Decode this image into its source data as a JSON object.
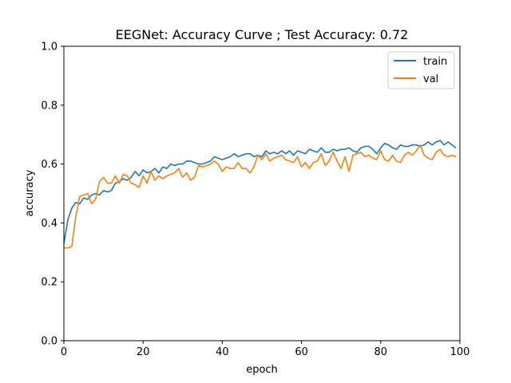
{
  "chart_data": {
    "type": "line",
    "title": "EEGNet: Accuracy Curve ; Test Accuracy: 0.72",
    "xlabel": "epoch",
    "ylabel": "accuracy",
    "xlim": [
      0,
      100
    ],
    "ylim": [
      0.0,
      1.0
    ],
    "xticks": [
      0,
      20,
      40,
      60,
      80,
      100
    ],
    "yticks": [
      0.0,
      0.2,
      0.4,
      0.6,
      0.8,
      1.0
    ],
    "xtick_labels": [
      "0",
      "20",
      "40",
      "60",
      "80",
      "100"
    ],
    "ytick_labels": [
      "0.0",
      "0.2",
      "0.4",
      "0.6",
      "0.8",
      "1.0"
    ],
    "grid": false,
    "legend_position": "top-right",
    "series": [
      {
        "name": "train",
        "color": "#1f77b4",
        "x": [
          0,
          1,
          2,
          3,
          4,
          5,
          6,
          7,
          8,
          9,
          10,
          11,
          12,
          13,
          14,
          15,
          16,
          17,
          18,
          19,
          20,
          21,
          22,
          23,
          24,
          25,
          26,
          27,
          28,
          29,
          30,
          31,
          32,
          33,
          34,
          35,
          36,
          37,
          38,
          39,
          40,
          41,
          42,
          43,
          44,
          45,
          46,
          47,
          48,
          49,
          50,
          51,
          52,
          53,
          54,
          55,
          56,
          57,
          58,
          59,
          60,
          61,
          62,
          63,
          64,
          65,
          66,
          67,
          68,
          69,
          70,
          71,
          72,
          73,
          74,
          75,
          76,
          77,
          78,
          79,
          80,
          81,
          82,
          83,
          84,
          85,
          86,
          87,
          88,
          89,
          90,
          91,
          92,
          93,
          94,
          95,
          96,
          97,
          98,
          99
        ],
        "values": [
          0.33,
          0.41,
          0.45,
          0.47,
          0.465,
          0.485,
          0.48,
          0.495,
          0.5,
          0.495,
          0.51,
          0.505,
          0.51,
          0.535,
          0.54,
          0.55,
          0.545,
          0.555,
          0.575,
          0.56,
          0.58,
          0.57,
          0.575,
          0.585,
          0.57,
          0.59,
          0.585,
          0.6,
          0.595,
          0.6,
          0.6,
          0.61,
          0.61,
          0.605,
          0.6,
          0.6,
          0.605,
          0.61,
          0.625,
          0.62,
          0.615,
          0.62,
          0.625,
          0.635,
          0.625,
          0.63,
          0.635,
          0.635,
          0.625,
          0.63,
          0.625,
          0.645,
          0.635,
          0.64,
          0.635,
          0.645,
          0.635,
          0.645,
          0.63,
          0.645,
          0.64,
          0.635,
          0.65,
          0.645,
          0.64,
          0.655,
          0.64,
          0.64,
          0.65,
          0.645,
          0.65,
          0.65,
          0.655,
          0.645,
          0.64,
          0.655,
          0.66,
          0.66,
          0.65,
          0.635,
          0.655,
          0.67,
          0.665,
          0.655,
          0.65,
          0.665,
          0.66,
          0.66,
          0.665,
          0.665,
          0.66,
          0.665,
          0.675,
          0.665,
          0.675,
          0.68,
          0.665,
          0.675,
          0.665,
          0.655
        ]
      },
      {
        "name": "val",
        "color": "#ff7f0e",
        "x": [
          0,
          1,
          2,
          3,
          4,
          5,
          6,
          7,
          8,
          9,
          10,
          11,
          12,
          13,
          14,
          15,
          16,
          17,
          18,
          19,
          20,
          21,
          22,
          23,
          24,
          25,
          26,
          27,
          28,
          29,
          30,
          31,
          32,
          33,
          34,
          35,
          36,
          37,
          38,
          39,
          40,
          41,
          42,
          43,
          44,
          45,
          46,
          47,
          48,
          49,
          50,
          51,
          52,
          53,
          54,
          55,
          56,
          57,
          58,
          59,
          60,
          61,
          62,
          63,
          64,
          65,
          66,
          67,
          68,
          69,
          70,
          71,
          72,
          73,
          74,
          75,
          76,
          77,
          78,
          79,
          80,
          81,
          82,
          83,
          84,
          85,
          86,
          87,
          88,
          89,
          90,
          91,
          92,
          93,
          94,
          95,
          96,
          97,
          98,
          99
        ],
        "values": [
          0.315,
          0.315,
          0.32,
          0.42,
          0.49,
          0.495,
          0.5,
          0.465,
          0.48,
          0.54,
          0.555,
          0.535,
          0.535,
          0.56,
          0.535,
          0.565,
          0.56,
          0.535,
          0.53,
          0.52,
          0.56,
          0.535,
          0.575,
          0.545,
          0.56,
          0.55,
          0.56,
          0.565,
          0.57,
          0.585,
          0.555,
          0.57,
          0.545,
          0.555,
          0.595,
          0.59,
          0.595,
          0.6,
          0.61,
          0.6,
          0.575,
          0.59,
          0.585,
          0.585,
          0.605,
          0.585,
          0.585,
          0.57,
          0.59,
          0.63,
          0.615,
          0.635,
          0.61,
          0.62,
          0.625,
          0.63,
          0.615,
          0.61,
          0.605,
          0.625,
          0.59,
          0.605,
          0.585,
          0.605,
          0.61,
          0.635,
          0.595,
          0.61,
          0.64,
          0.61,
          0.585,
          0.625,
          0.575,
          0.63,
          0.635,
          0.64,
          0.625,
          0.63,
          0.62,
          0.615,
          0.645,
          0.615,
          0.61,
          0.63,
          0.61,
          0.605,
          0.63,
          0.64,
          0.63,
          0.645,
          0.665,
          0.63,
          0.62,
          0.615,
          0.64,
          0.65,
          0.63,
          0.625,
          0.63,
          0.625
        ]
      }
    ]
  }
}
